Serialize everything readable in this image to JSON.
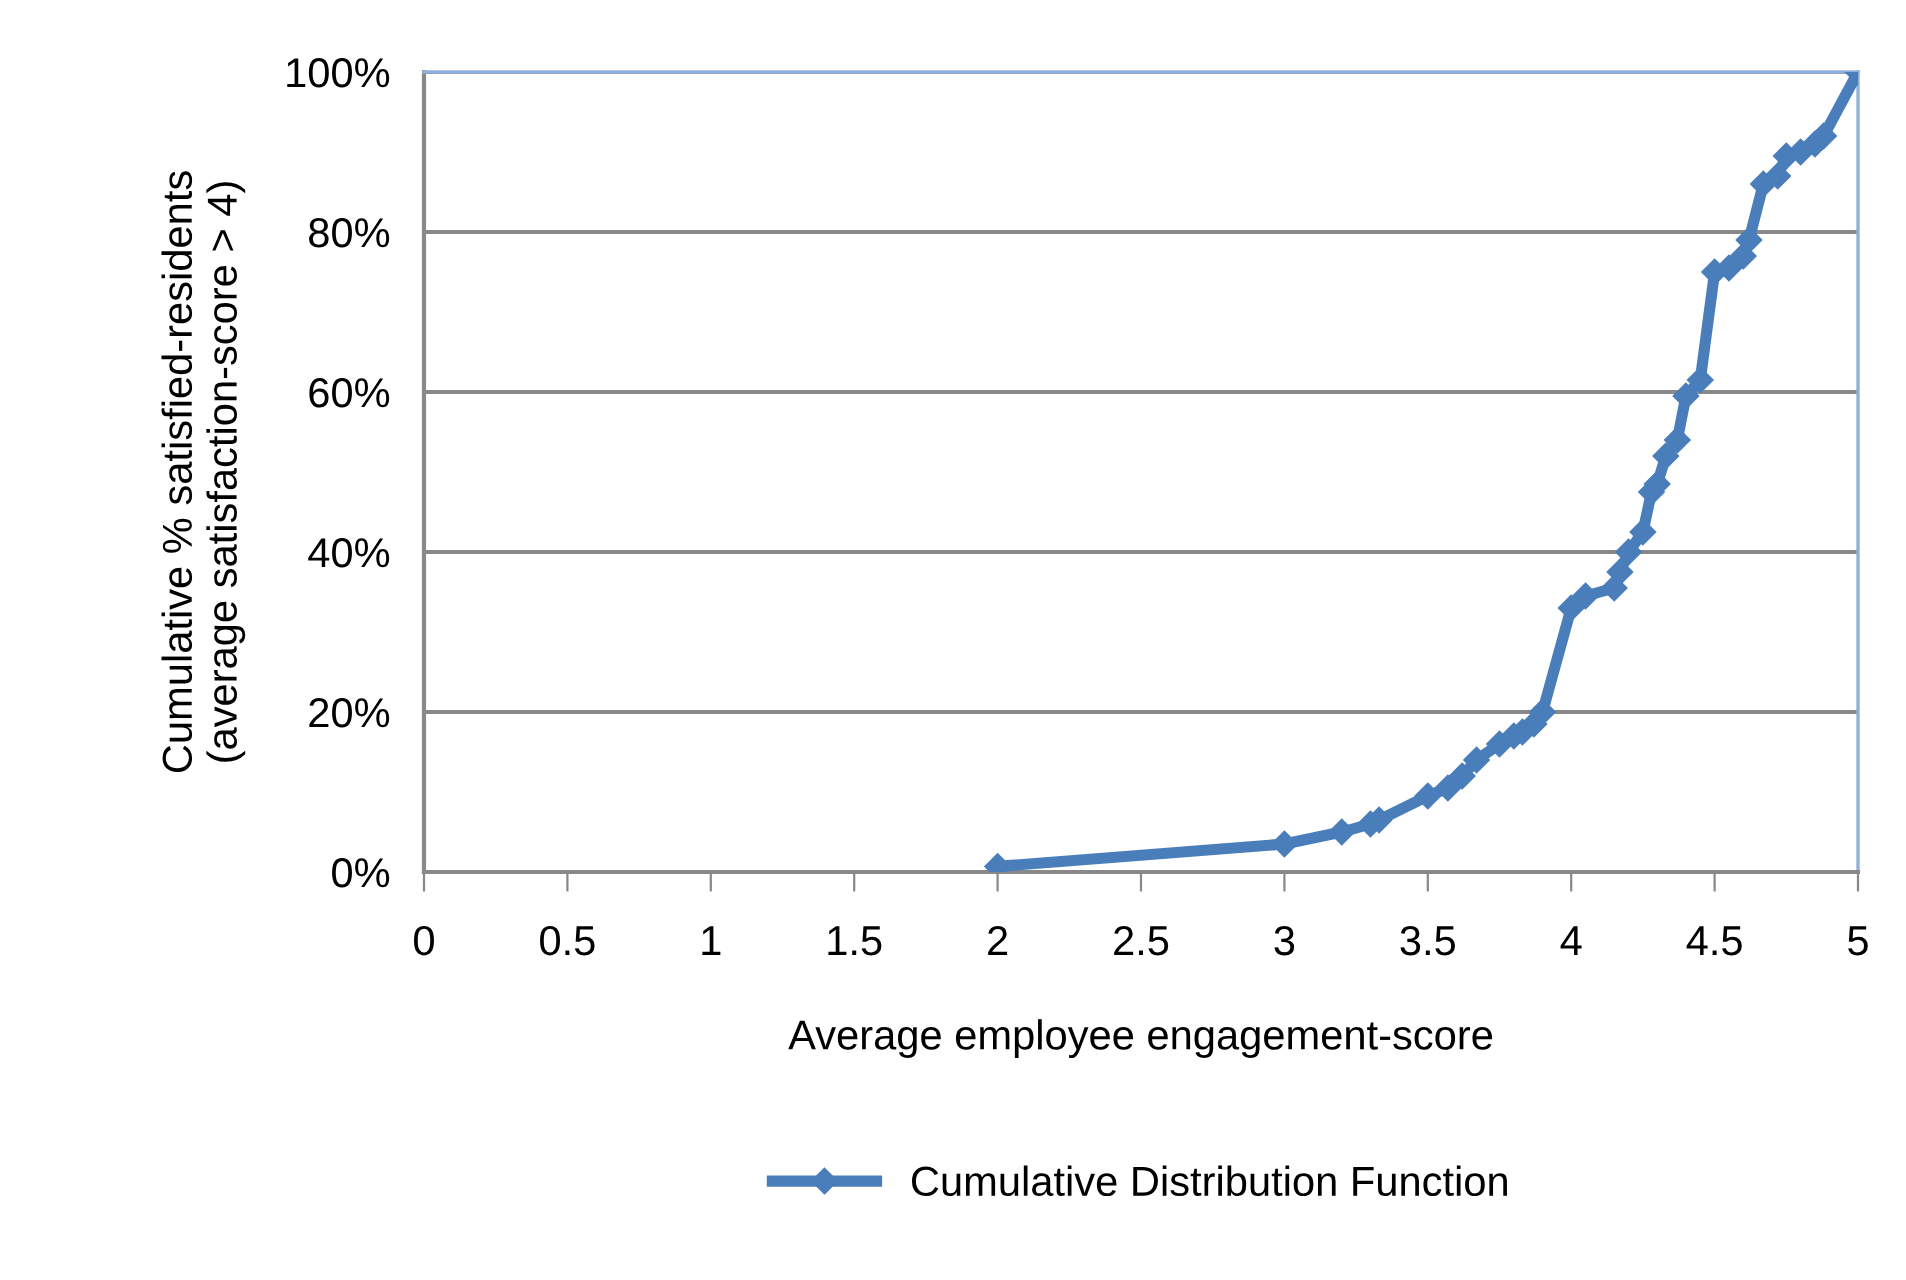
{
  "chart_data": {
    "type": "line",
    "xlabel": "Average employee engagement-score",
    "ylabel": "Cumulative % satisfied-residents\n(average satisfaction-score > 4)",
    "series": [
      {
        "name": "Cumulative Distribution Function",
        "color": "#4a7ebb",
        "x": [
          2.0,
          3.0,
          3.2,
          3.3,
          3.33,
          3.5,
          3.57,
          3.62,
          3.67,
          3.75,
          3.8,
          3.83,
          3.87,
          3.9,
          4.0,
          4.05,
          4.15,
          4.17,
          4.2,
          4.25,
          4.28,
          4.3,
          4.33,
          4.37,
          4.4,
          4.45,
          4.5,
          4.55,
          4.6,
          4.62,
          4.67,
          4.72,
          4.75,
          4.8,
          4.85,
          4.88,
          5.0
        ],
        "values": [
          0.7,
          3.5,
          5,
          6,
          6.5,
          9.5,
          10.5,
          12,
          14,
          16,
          17,
          17.5,
          18.5,
          20,
          33,
          34.5,
          35.5,
          37.5,
          40,
          42.5,
          47.5,
          48.5,
          52,
          54,
          59.5,
          61.5,
          75,
          75.5,
          77,
          79,
          86,
          87,
          89.5,
          90,
          91,
          92,
          100
        ]
      }
    ],
    "xlim": [
      0,
      5
    ],
    "xticks": [
      0,
      0.5,
      1,
      1.5,
      2,
      2.5,
      3,
      3.5,
      4,
      4.5,
      5
    ],
    "ylim": [
      0,
      100
    ],
    "yticks": [
      {
        "value": 0,
        "label": "0%"
      },
      {
        "value": 20,
        "label": "20%"
      },
      {
        "value": 40,
        "label": "40%"
      },
      {
        "value": 60,
        "label": "60%"
      },
      {
        "value": 80,
        "label": "80%"
      },
      {
        "value": 100,
        "label": "100%"
      }
    ],
    "grid": "y",
    "legend": "bottom",
    "marker": "diamond",
    "line_style": "solid"
  }
}
